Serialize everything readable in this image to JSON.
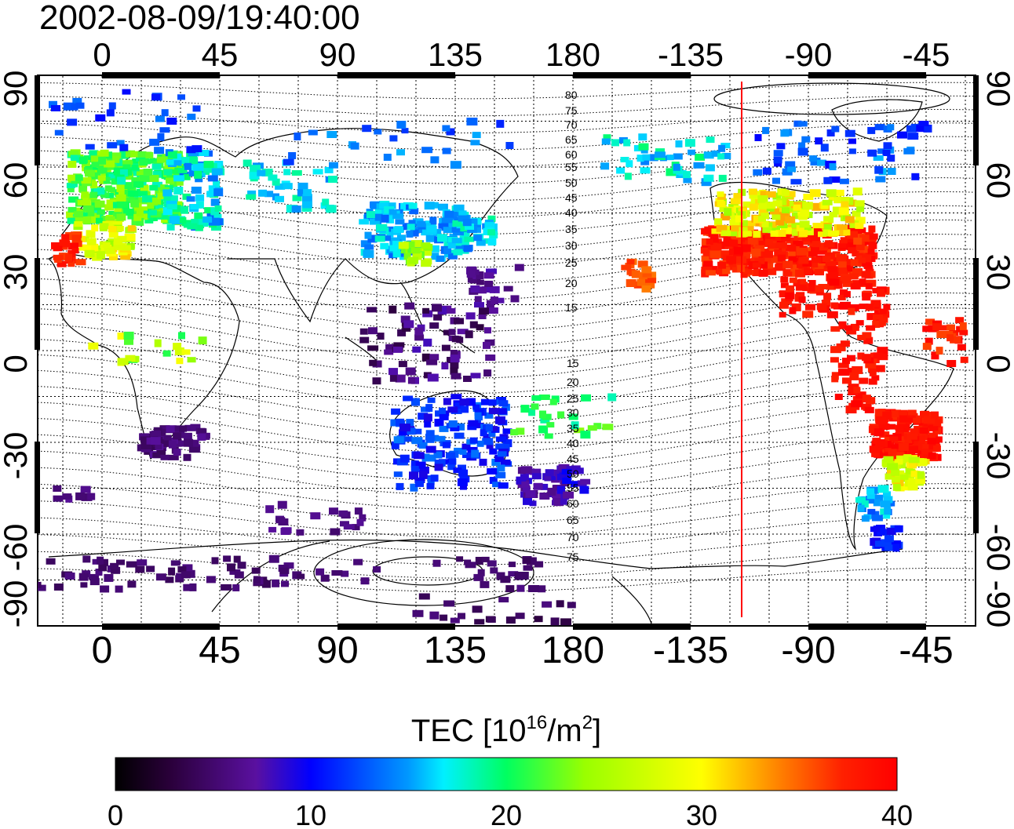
{
  "timestamp": "2002-08-09/19:40:00",
  "axes": {
    "lon_ticks": [
      "0",
      "45",
      "90",
      "135",
      "180",
      "-135",
      "-90",
      "-45"
    ],
    "lat_ticks": [
      "90",
      "60",
      "30",
      "0",
      "-30",
      "-60",
      "-90"
    ]
  },
  "contour_labels_north": [
    "80",
    "75",
    "70",
    "65",
    "60",
    "55",
    "50",
    "45",
    "40",
    "35",
    "30",
    "25",
    "20",
    "15"
  ],
  "contour_labels_south": [
    "15",
    "20",
    "25",
    "30",
    "35",
    "40",
    "45",
    "50",
    "55",
    "60",
    "65",
    "70",
    "75"
  ],
  "colorbar": {
    "title_prefix": "TEC  [10",
    "title_exp1": "16",
    "title_mid": "/m",
    "title_exp2": "2",
    "title_suffix": "]",
    "ticks": [
      "0",
      "10",
      "20",
      "30",
      "40"
    ],
    "min": 0,
    "max": 40
  },
  "map": {
    "lon_range": [
      -25,
      335
    ],
    "lat_range": [
      -90,
      90
    ],
    "terminator_lon": -115,
    "colors": {
      "terminator": "#ff0000",
      "grid": "#000000"
    }
  }
}
